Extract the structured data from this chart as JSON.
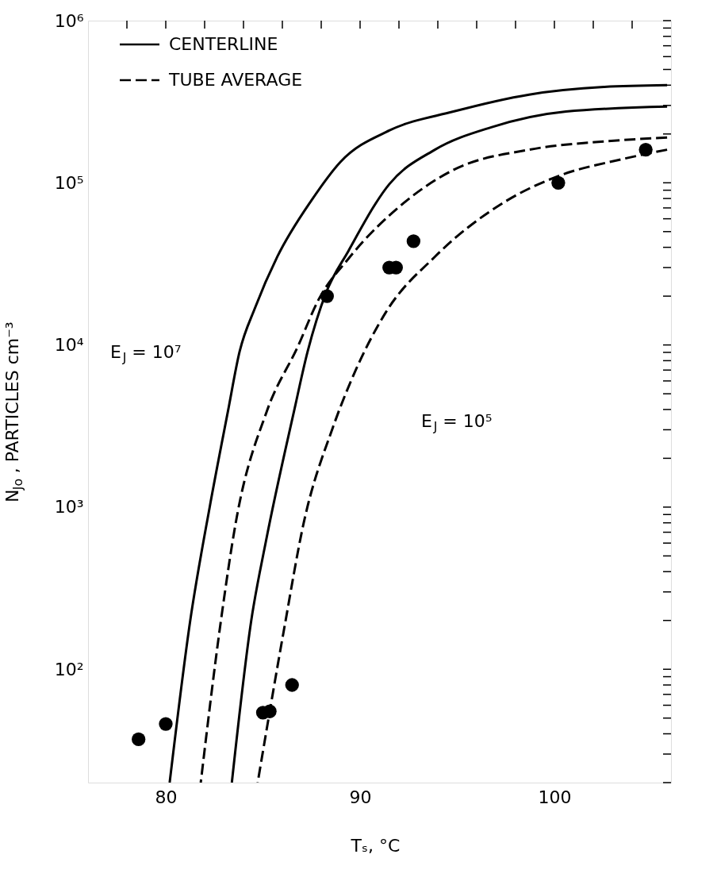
{
  "chart_data": {
    "type": "line",
    "xlabel": "Tₛ, °C",
    "ylabel": "N$_{Jo}$, PARTICLES cm⁻³",
    "log": "y",
    "legend": "top left",
    "xlim": [
      76,
      106
    ],
    "xticks": [
      {
        "value": 78,
        "label": null
      },
      80,
      {
        "value": 82,
        "label": null
      },
      {
        "value": 84,
        "label": null
      },
      {
        "value": 86,
        "label": null
      },
      {
        "value": 88,
        "label": null
      },
      90,
      {
        "value": 92,
        "label": null
      },
      {
        "value": 94,
        "label": null
      },
      {
        "value": 96,
        "label": null
      },
      {
        "value": 98,
        "label": null
      },
      100,
      {
        "value": 102,
        "label": null
      },
      {
        "value": 104,
        "label": null
      }
    ],
    "ylim": [
      20,
      1000000
    ],
    "yticks": [
      {
        "value": 20,
        "label": null
      },
      {
        "value": 30,
        "label": null
      },
      {
        "value": 40,
        "label": null
      },
      {
        "value": 50,
        "label": null
      },
      {
        "value": 60,
        "label": null
      },
      {
        "value": 70,
        "label": null
      },
      {
        "value": 80,
        "label": null
      },
      {
        "value": 90,
        "label": null
      },
      {
        "value": 100,
        "label": "10²"
      },
      {
        "value": 200,
        "label": null
      },
      {
        "value": 300,
        "label": null
      },
      {
        "value": 400,
        "label": null
      },
      {
        "value": 500,
        "label": null
      },
      {
        "value": 600,
        "label": null
      },
      {
        "value": 700,
        "label": null
      },
      {
        "value": 800,
        "label": null
      },
      {
        "value": 900,
        "label": null
      },
      {
        "value": 1000,
        "label": "10³"
      },
      {
        "value": 2000,
        "label": null
      },
      {
        "value": 3000,
        "label": null
      },
      {
        "value": 4000,
        "label": null
      },
      {
        "value": 5000,
        "label": null
      },
      {
        "value": 6000,
        "label": null
      },
      {
        "value": 7000,
        "label": null
      },
      {
        "value": 8000,
        "label": null
      },
      {
        "value": 9000,
        "label": null
      },
      {
        "value": 10000,
        "label": "10⁴"
      },
      {
        "value": 20000,
        "label": null
      },
      {
        "value": 30000,
        "label": null
      },
      {
        "value": 40000,
        "label": null
      },
      {
        "value": 50000,
        "label": null
      },
      {
        "value": 60000,
        "label": null
      },
      {
        "value": 70000,
        "label": null
      },
      {
        "value": 80000,
        "label": null
      },
      {
        "value": 90000,
        "label": null
      },
      {
        "value": 100000,
        "label": "10⁵"
      },
      {
        "value": 200000,
        "label": null
      },
      {
        "value": 300000,
        "label": null
      },
      {
        "value": 400000,
        "label": null
      },
      {
        "value": 500000,
        "label": null
      },
      {
        "value": 600000,
        "label": null
      },
      {
        "value": 700000,
        "label": null
      },
      {
        "value": 800000,
        "label": null
      },
      {
        "value": 900000,
        "label": null
      },
      {
        "value": 1000000,
        "label": "10⁶"
      }
    ],
    "series": [
      {
        "name": "CENTERLINE",
        "color": "#000000",
        "line_style": "solid",
        "x": [
          80.2,
          81.26,
          82.26,
          83.2,
          83.8,
          84.6,
          85.74,
          87.5,
          89.0,
          91.5,
          94.8,
          98.7,
          102.55,
          105.8
        ],
        "values": [
          20,
          200,
          1000,
          3900,
          9100,
          17000,
          35000,
          78000,
          135000,
          210000,
          275000,
          350000,
          390000,
          400000
        ]
      },
      {
        "color": "#000000",
        "line_style": "solid",
        "x": [
          83.4,
          84.4,
          85.16,
          86.6,
          87.3,
          88.25,
          89.4,
          91.5,
          93.85,
          96.75,
          100.6,
          105.8
        ],
        "values": [
          20,
          200,
          620,
          3900,
          9100,
          21000,
          38000,
          98000,
          160000,
          220000,
          275000,
          295000
        ]
      },
      {
        "name": "TUBE AVERAGE",
        "color": "#000000",
        "line_style": "dashed",
        "x": [
          81.8,
          82.84,
          83.6,
          85.2,
          86.8,
          87.86,
          89.4,
          92.3,
          94.8,
          98.7,
          102.55,
          105.8
        ],
        "values": [
          20,
          200,
          800,
          3900,
          9800,
          19000,
          34000,
          76000,
          120000,
          160000,
          180000,
          190000
        ]
      },
      {
        "color": "#000000",
        "line_style": "dashed",
        "x": [
          84.73,
          86.1,
          87.1,
          88.6,
          89.8,
          91.34,
          93.85,
          97.5,
          100.2,
          103.5,
          105.8
        ],
        "values": [
          20,
          180,
          800,
          3100,
          7100,
          16000,
          35000,
          77000,
          110000,
          140000,
          160000
        ]
      },
      {
        "type": "scatter",
        "marker": "circle",
        "color": "#000000",
        "x": [
          78.6,
          80.0,
          85.0,
          85.35,
          86.5,
          88.3,
          91.5,
          91.85,
          92.75,
          100.2,
          104.7
        ],
        "values": [
          37,
          46,
          54,
          55,
          80,
          20000,
          30000,
          30000,
          43600,
          100000,
          160000
        ]
      }
    ],
    "annotations": [
      "E$_{J}$ = 10⁷",
      "E$_{J}$ = 10⁵"
    ]
  }
}
